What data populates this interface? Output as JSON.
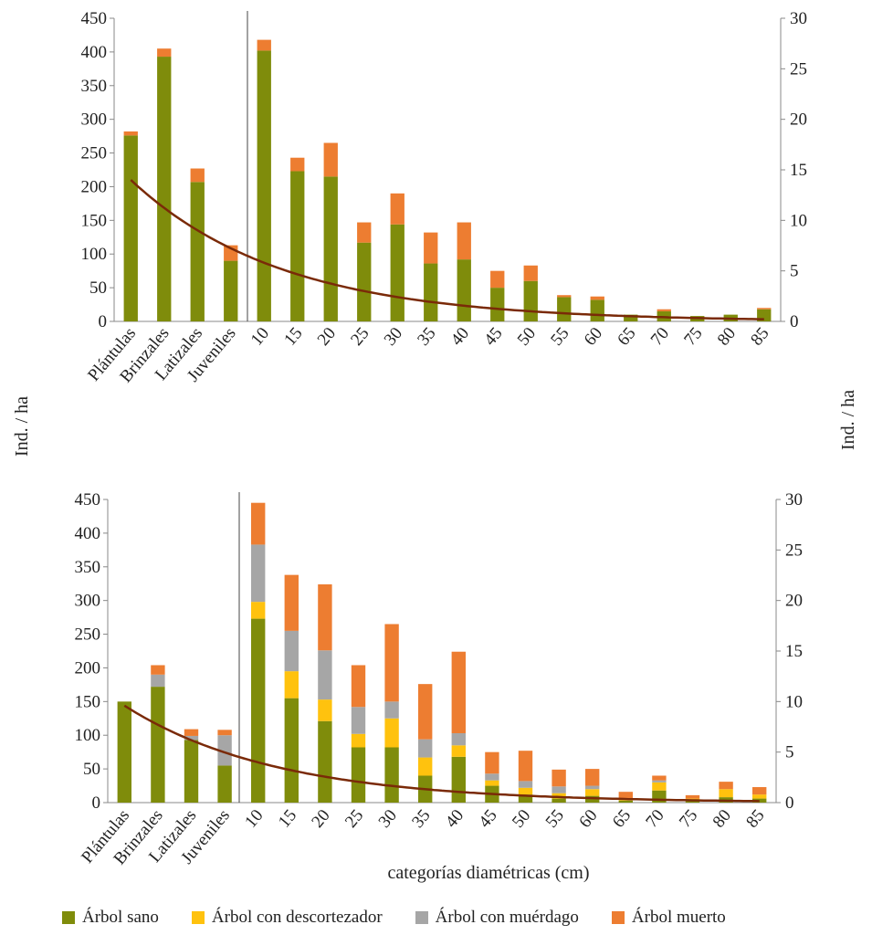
{
  "y_axis_label": "Ind. / ha",
  "y2_axis_label": "Ind. / ha",
  "x_axis_label": "categorías diamétricas (cm)",
  "legend": [
    {
      "key": "sano",
      "label": "Árbol sano",
      "color": "#7f8c0b"
    },
    {
      "key": "descortezador",
      "label": "Árbol con descortezador",
      "color": "#ffc20e"
    },
    {
      "key": "muerdago",
      "label": "Árbol con muérdago",
      "color": "#a6a6a6"
    },
    {
      "key": "muerto",
      "label": "Árbol muerto",
      "color": "#ed7d31"
    }
  ],
  "trend_color": "#7a2a08",
  "chart_data": [
    {
      "type": "bar",
      "stacked": true,
      "categories": [
        "Plántulas",
        "Brinzales",
        "Latizales",
        "Juveniles",
        "10",
        "15",
        "20",
        "25",
        "30",
        "35",
        "40",
        "45",
        "50",
        "55",
        "60",
        "65",
        "70",
        "75",
        "80",
        "85"
      ],
      "y_left_range": [
        0,
        450
      ],
      "y_left_ticks": [
        "0",
        "50",
        "100",
        "150",
        "200",
        "250",
        "300",
        "350",
        "400",
        "450"
      ],
      "y_right_range": [
        0,
        30
      ],
      "y_right_ticks": [
        "0",
        "5",
        "10",
        "15",
        "20",
        "25",
        "30"
      ],
      "axis_split_after": 4,
      "left_axis_categories": 4,
      "series": [
        {
          "key": "sano",
          "values": [
            276,
            393,
            207,
            90,
            402,
            223,
            215,
            117,
            144,
            86,
            92,
            50,
            60,
            36,
            32,
            10,
            15,
            8,
            10,
            18
          ]
        },
        {
          "key": "muerto",
          "values": [
            6,
            12,
            20,
            23,
            16,
            20,
            50,
            30,
            46,
            46,
            55,
            25,
            23,
            3,
            5,
            0,
            3,
            0,
            0,
            2
          ]
        }
      ],
      "trend": {
        "left_start": 14.0,
        "decay": 0.22
      }
    },
    {
      "type": "bar",
      "stacked": true,
      "categories": [
        "Plántulas",
        "Brinzales",
        "Latizales",
        "Juveniles",
        "10",
        "15",
        "20",
        "25",
        "30",
        "35",
        "40",
        "45",
        "50",
        "55",
        "60",
        "65",
        "70",
        "75",
        "80",
        "85"
      ],
      "y_left_range": [
        0,
        450
      ],
      "y_left_ticks": [
        "0",
        "50",
        "100",
        "150",
        "200",
        "250",
        "300",
        "350",
        "400",
        "450"
      ],
      "y_right_range": [
        0,
        30
      ],
      "y_right_ticks": [
        "0",
        "5",
        "10",
        "15",
        "20",
        "25",
        "30"
      ],
      "axis_split_after": 4,
      "left_axis_categories": 4,
      "series": [
        {
          "key": "sano",
          "values": [
            150,
            172,
            93,
            55,
            273,
            155,
            121,
            82,
            82,
            40,
            68,
            25,
            12,
            6,
            10,
            3,
            18,
            3,
            8,
            6
          ]
        },
        {
          "key": "descortezador",
          "values": [
            0,
            0,
            0,
            0,
            25,
            40,
            32,
            20,
            43,
            27,
            17,
            8,
            10,
            8,
            10,
            3,
            12,
            3,
            12,
            6
          ]
        },
        {
          "key": "muerdago",
          "values": [
            0,
            18,
            6,
            45,
            85,
            60,
            73,
            40,
            25,
            27,
            18,
            10,
            10,
            10,
            5,
            0,
            3,
            0,
            0,
            0
          ]
        },
        {
          "key": "muerto",
          "values": [
            0,
            14,
            10,
            8,
            62,
            83,
            98,
            62,
            115,
            82,
            121,
            32,
            45,
            25,
            25,
            10,
            7,
            5,
            11,
            11
          ]
        }
      ],
      "trend": {
        "left_start": 9.6,
        "decay": 0.22
      }
    }
  ]
}
